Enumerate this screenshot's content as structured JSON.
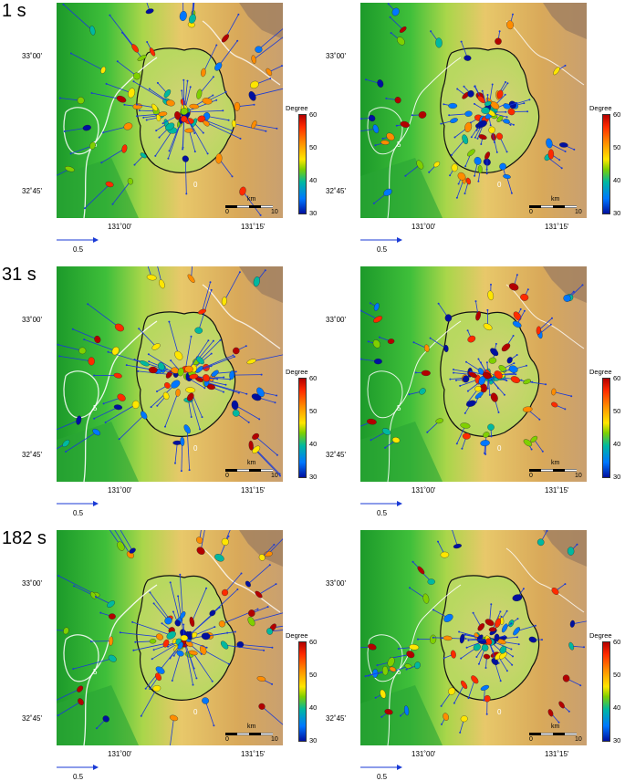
{
  "rows": [
    {
      "time": "1 s"
    },
    {
      "time": "31 s"
    },
    {
      "time": "182 s"
    }
  ],
  "lat_labels": [
    "33˚00'",
    "32˚45'"
  ],
  "lon_labels": [
    "131˚00'",
    "131˚15'"
  ],
  "colorbar": {
    "title": "Degree",
    "ticks": [
      "60",
      "50",
      "40",
      "30"
    ],
    "colors": [
      "#0010a0",
      "#0077ff",
      "#00b8a0",
      "#7fd000",
      "#ffe600",
      "#ff8c00",
      "#ff2a00",
      "#b30000"
    ]
  },
  "scale_bar": {
    "unit": "km",
    "min": "0",
    "max": "10"
  },
  "reference_vector": {
    "label": "0.5",
    "color": "#1a3ad6"
  },
  "contours": {
    "label_5": "5",
    "label_0": "0"
  }
}
